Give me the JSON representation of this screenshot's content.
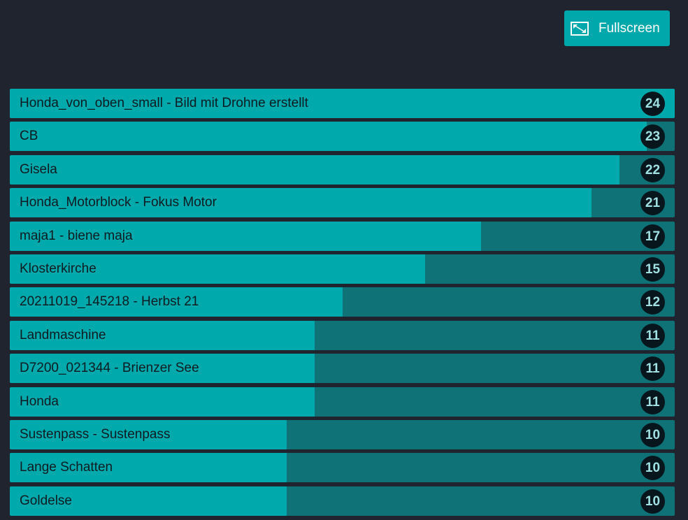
{
  "header": {
    "button": "Fullscreen"
  },
  "rows": [
    {
      "label": "Honda_von_oben_small - Bild mit Drohne erstellt",
      "value": 24
    },
    {
      "label": "CB",
      "value": 23
    },
    {
      "label": "Gisela",
      "value": 22
    },
    {
      "label": "Honda_Motorblock - Fokus Motor",
      "value": 21
    },
    {
      "label": "maja1 - biene maja",
      "value": 17
    },
    {
      "label": "Klosterkirche",
      "value": 15
    },
    {
      "label": "20211019_145218 - Herbst 21",
      "value": 12
    },
    {
      "label": "Landmaschine",
      "value": 11
    },
    {
      "label": "D7200_021344 - Brienzer See",
      "value": 11
    },
    {
      "label": "Honda",
      "value": 11
    },
    {
      "label": "Sustenpass - Sustenpass",
      "value": 10
    },
    {
      "label": "Lange Schatten",
      "value": 10
    },
    {
      "label": "Goldelse",
      "value": 10
    }
  ]
}
